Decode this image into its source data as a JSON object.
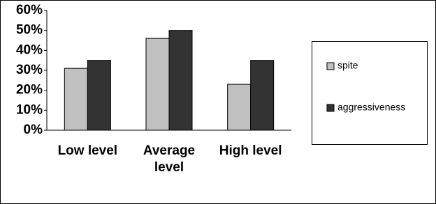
{
  "chart_data": {
    "type": "bar",
    "categories": [
      "Low level",
      "Average level",
      "High level"
    ],
    "series": [
      {
        "name": "spite",
        "color": "#c0c0c0",
        "values": [
          31,
          46,
          23
        ]
      },
      {
        "name": "aggressiveness",
        "color": "#333333",
        "values": [
          35,
          50,
          35
        ]
      }
    ],
    "ylim": [
      0,
      60
    ],
    "yticks": [
      {
        "value": 0,
        "label": "0%"
      },
      {
        "value": 10,
        "label": "10%"
      },
      {
        "value": 20,
        "label": "20%"
      },
      {
        "value": 30,
        "label": "30%"
      },
      {
        "value": 40,
        "label": "40%"
      },
      {
        "value": 50,
        "label": "50%"
      },
      {
        "value": 60,
        "label": "60%"
      }
    ],
    "grid": false,
    "legend": "right"
  }
}
